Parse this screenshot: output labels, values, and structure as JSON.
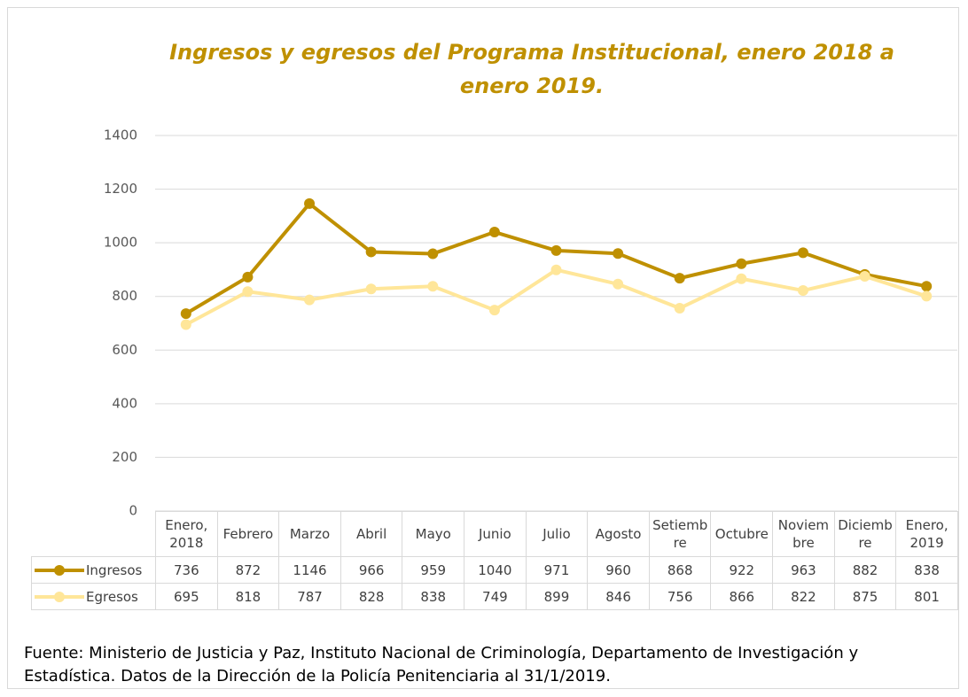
{
  "chart_data": {
    "type": "line",
    "title": "Ingresos y egresos del Programa Institucional, enero 2018 a enero 2019.",
    "categories": [
      "Enero, 2018",
      "Febrero",
      "Marzo",
      "Abril",
      "Mayo",
      "Junio",
      "Julio",
      "Agosto",
      "Setiembre",
      "Octubre",
      "Noviembre",
      "Diciembre",
      "Enero, 2019"
    ],
    "series": [
      {
        "name": "Ingresos",
        "color": "#bf9000",
        "values": [
          736,
          872,
          1146,
          966,
          959,
          1040,
          971,
          960,
          868,
          922,
          963,
          882,
          838
        ]
      },
      {
        "name": "Egresos",
        "color": "#ffe699",
        "values": [
          695,
          818,
          787,
          828,
          838,
          749,
          899,
          846,
          756,
          866,
          822,
          875,
          801
        ]
      }
    ],
    "ylim": [
      0,
      1400
    ],
    "yticks": [
      0,
      200,
      400,
      600,
      800,
      1000,
      1200,
      1400
    ],
    "grid": true,
    "source": "Fuente: Ministerio de Justicia y Paz, Instituto Nacional de Criminología, Departamento de Investigación y Estadística. Datos de la Dirección de la Policía Penitenciaria al 31/1/2019."
  }
}
